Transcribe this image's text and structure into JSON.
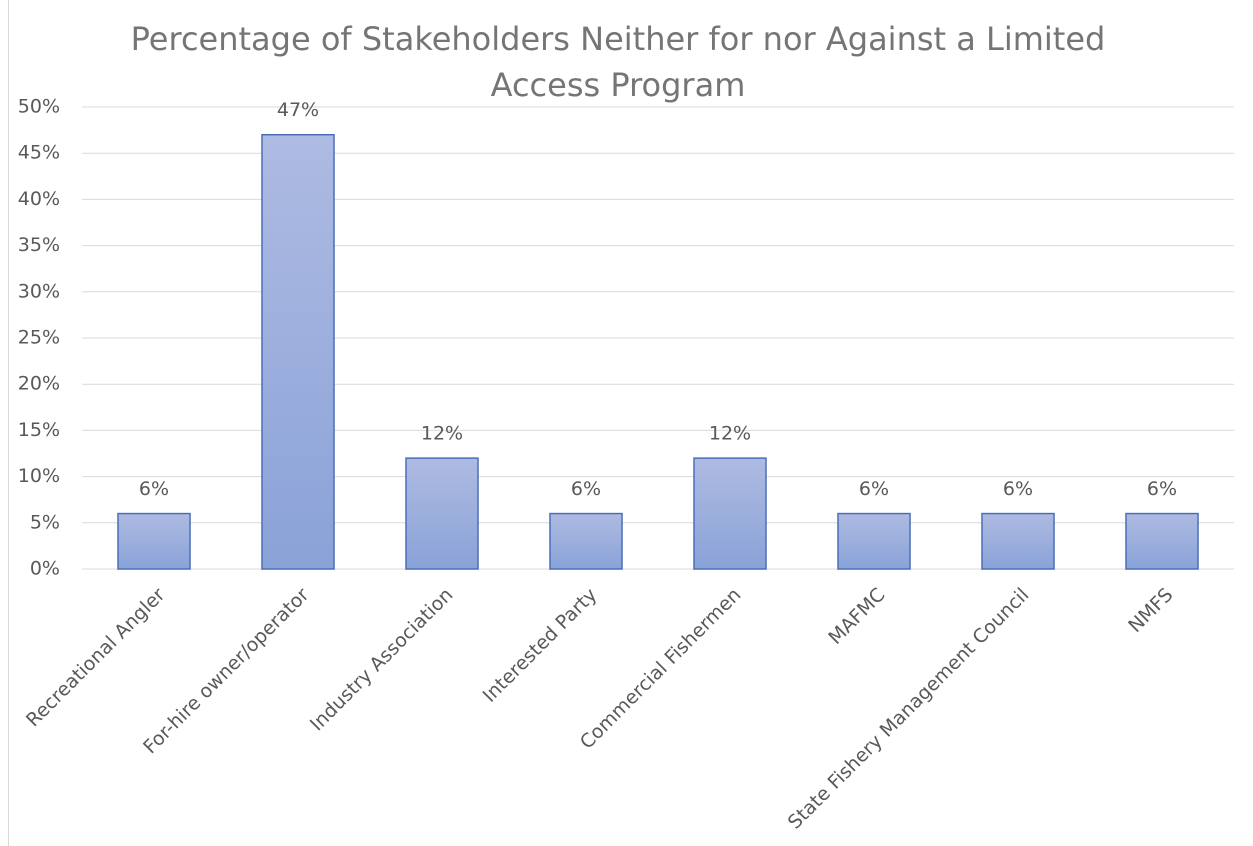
{
  "chart_data": {
    "type": "bar",
    "title": "Percentage of Stakeholders Neither for nor Against a Limited Access Program",
    "categories": [
      "Recreational Angler",
      "For-hire owner/operator",
      "Industry Association",
      "Interested Party",
      "Commercial Fishermen",
      "MAFMC",
      "State Fishery Management Council",
      "NMFS"
    ],
    "values": [
      6,
      47,
      12,
      6,
      12,
      6,
      6,
      6
    ],
    "value_labels": [
      "6%",
      "47%",
      "12%",
      "6%",
      "12%",
      "6%",
      "6%",
      "6%"
    ],
    "color": "#8ea5da",
    "ylim": [
      0,
      50
    ],
    "yticks": [
      {
        "value": 0,
        "label": "0%"
      },
      {
        "value": 5,
        "label": "5%"
      },
      {
        "value": 10,
        "label": "10%"
      },
      {
        "value": 15,
        "label": "15%"
      },
      {
        "value": 20,
        "label": "20%"
      },
      {
        "value": 25,
        "label": "25%"
      },
      {
        "value": 30,
        "label": "30%"
      },
      {
        "value": 35,
        "label": "35%"
      },
      {
        "value": 40,
        "label": "40%"
      },
      {
        "value": 45,
        "label": "45%"
      },
      {
        "value": 50,
        "label": "50%"
      }
    ],
    "grid": true
  }
}
